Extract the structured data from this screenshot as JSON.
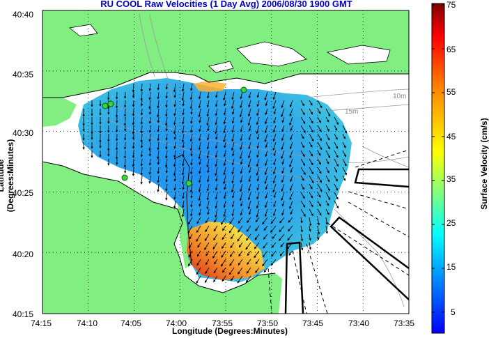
{
  "title": "RU COOL Raw Velocities (1 Day Avg) 2006/08/30 1900 GMT",
  "title_color": "#0000cc",
  "axes": {
    "xlabel": "Longitude (Degrees:Minutes)",
    "ylabel": "Latitude (Degrees:Minutes)",
    "xticks": [
      "74:15",
      "74:10",
      "74:05",
      "74:00",
      "73:55",
      "73:50",
      "73:45",
      "73:40",
      "73:35"
    ],
    "yticks": [
      "40:40",
      "40:35",
      "40:30",
      "40:25",
      "40:20",
      "40:15"
    ]
  },
  "bathymetry_labels": [
    "10m",
    "15m"
  ],
  "colorbar": {
    "label": "Surface Velocity (cm/s)",
    "ticks": [
      "75",
      "65",
      "55",
      "45",
      "35",
      "25",
      "15",
      "5"
    ],
    "range": [
      0,
      75
    ],
    "colors": [
      "#00007f",
      "#0000ff",
      "#00ffff",
      "#ffff00",
      "#ff7f00",
      "#ff0000",
      "#7f0000"
    ]
  },
  "map": {
    "land_color": "#80ee80",
    "water_color": "#ffffff",
    "grid": true,
    "grid_style": "dotted"
  }
}
